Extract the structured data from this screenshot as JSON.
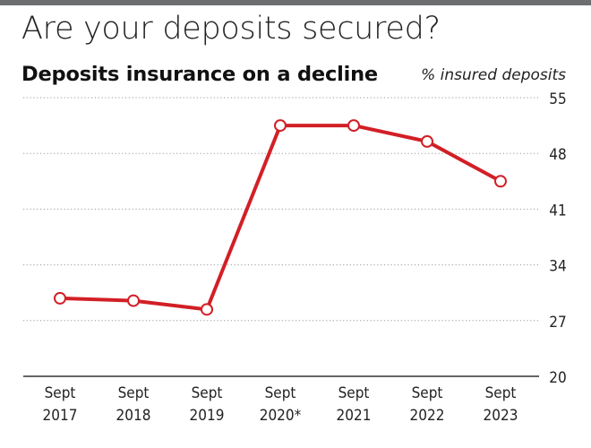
{
  "headline": "Are your deposits secured?",
  "chart_data": {
    "type": "line",
    "title": "Deposits insurance on a decline",
    "xlabel": "",
    "ylabel": "% insured deposits",
    "categories": [
      [
        "Sept",
        "2017"
      ],
      [
        "Sept",
        "2018"
      ],
      [
        "Sept",
        "2019"
      ],
      [
        "Sept",
        "2020*"
      ],
      [
        "Sept",
        "2021"
      ],
      [
        "Sept",
        "2022"
      ],
      [
        "Sept",
        "2023"
      ]
    ],
    "values": [
      29.8,
      29.5,
      28.4,
      51.5,
      51.5,
      49.5,
      44.5
    ],
    "ylim": [
      20,
      55
    ],
    "yticks": [
      20,
      27,
      34,
      41,
      48,
      55
    ],
    "grid": "horizontal dotted",
    "colors": {
      "line": "#d21f26",
      "marker_fill": "#ffffff",
      "grid": "#9a9a9a",
      "baseline": "#333333",
      "top_rule": "#6d6e70"
    }
  }
}
